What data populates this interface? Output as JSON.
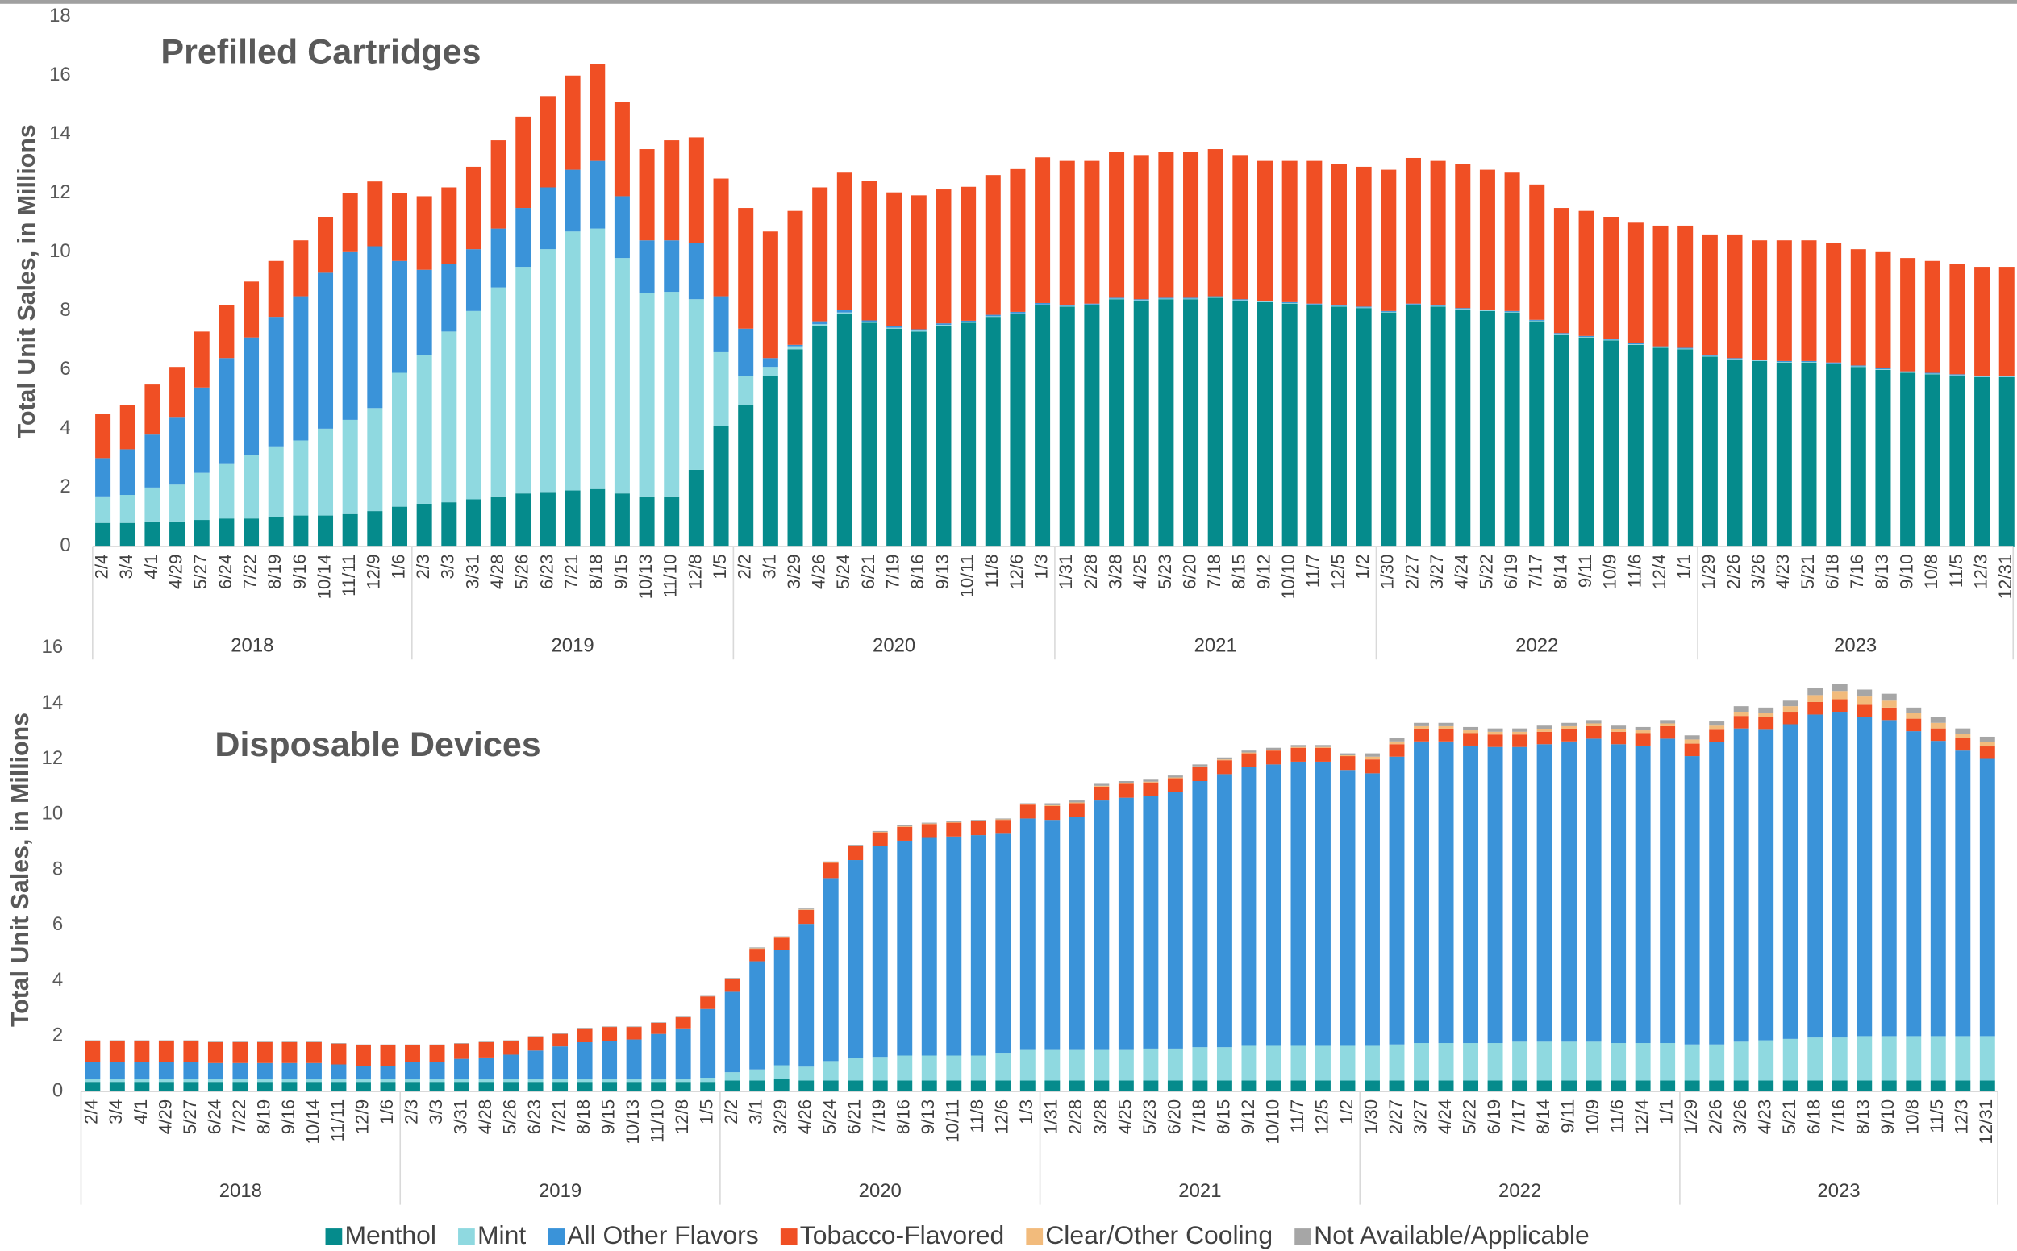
{
  "chart_data": [
    {
      "type": "bar",
      "stacked": true,
      "title": "Prefilled Cartridges",
      "ylabel": "Total Unit Sales, in Millions",
      "categories": [
        "2/4",
        "3/4",
        "4/1",
        "4/29",
        "5/27",
        "6/24",
        "7/22",
        "8/19",
        "9/16",
        "10/14",
        "11/11",
        "12/9",
        "1/6",
        "2/3",
        "3/3",
        "3/31",
        "4/28",
        "5/26",
        "6/23",
        "7/21",
        "8/18",
        "9/15",
        "10/13",
        "11/10",
        "12/8",
        "1/5",
        "2/2",
        "3/1",
        "3/29",
        "4/26",
        "5/24",
        "6/21",
        "7/19",
        "8/16",
        "9/13",
        "10/11",
        "11/8",
        "12/6",
        "1/3",
        "1/31",
        "2/28",
        "3/28",
        "4/25",
        "5/23",
        "6/20",
        "7/18",
        "8/15",
        "9/12",
        "10/10",
        "11/7",
        "12/5",
        "1/2",
        "1/30",
        "2/27",
        "3/27",
        "4/24",
        "5/22",
        "6/19",
        "7/17",
        "8/14",
        "9/11",
        "10/9",
        "11/6",
        "12/4",
        "1/1",
        "1/29",
        "2/26",
        "3/26",
        "4/23",
        "5/21",
        "6/18",
        "7/16",
        "8/13",
        "9/10",
        "10/8",
        "11/5",
        "12/3",
        "12/31"
      ],
      "year_groups": [
        "2018",
        "2019",
        "2020",
        "2021",
        "2022",
        "2023"
      ],
      "ylim": [
        0,
        18
      ],
      "yticks": [
        0,
        2,
        4,
        6,
        8,
        10,
        12,
        14,
        16,
        18
      ],
      "series": [
        {
          "color": "#058b8c",
          "values": [
            0.8,
            0.8,
            0.85,
            0.85,
            0.9,
            0.95,
            0.95,
            1.0,
            1.05,
            1.05,
            1.1,
            1.2,
            1.35,
            1.45,
            1.5,
            1.6,
            1.7,
            1.8,
            1.85,
            1.9,
            1.95,
            1.8,
            1.7,
            1.7,
            2.6,
            4.1,
            4.8,
            5.8,
            6.7,
            7.5,
            7.9,
            7.6,
            7.4,
            7.3,
            7.5,
            7.6,
            7.8,
            7.9,
            8.2,
            8.15,
            8.2,
            8.4,
            8.35,
            8.4,
            8.4,
            8.45,
            8.35,
            8.3,
            8.25,
            8.2,
            8.15,
            8.1,
            7.95,
            8.2,
            8.15,
            8.05,
            8.0,
            7.95,
            7.65,
            7.2,
            7.1,
            7.0,
            6.85,
            6.75,
            6.7,
            6.45,
            6.35,
            6.3,
            6.25,
            6.25,
            6.2,
            6.1,
            6.0,
            5.9,
            5.85,
            5.8,
            5.75,
            5.75
          ]
        },
        {
          "color": "#8fd9e0",
          "values": [
            0.9,
            0.95,
            1.15,
            1.25,
            1.6,
            1.85,
            2.15,
            2.4,
            2.55,
            2.95,
            3.2,
            3.5,
            4.55,
            5.05,
            5.8,
            6.4,
            7.1,
            7.7,
            8.25,
            8.8,
            8.85,
            8.0,
            6.9,
            6.95,
            5.8,
            2.5,
            1.0,
            0.3,
            0.1,
            0.05,
            0.05,
            0.03,
            0.03,
            0.03,
            0.03,
            0.02,
            0.02,
            0.02,
            0.02,
            0.02,
            0.02,
            0.02,
            0.02,
            0.02,
            0.02,
            0.02,
            0.02,
            0.02,
            0.02,
            0.02,
            0.02,
            0.02,
            0.02,
            0.02,
            0.02,
            0.02,
            0.02,
            0.02,
            0.02,
            0.02,
            0.02,
            0.02,
            0.02,
            0.02,
            0.02,
            0.02,
            0.02,
            0.02,
            0.02,
            0.02,
            0.02,
            0.02,
            0.02,
            0.02,
            0.02,
            0.02,
            0.02,
            0.02
          ]
        },
        {
          "color": "#3a93d9",
          "values": [
            1.3,
            1.55,
            1.8,
            2.3,
            2.9,
            3.6,
            4.0,
            4.4,
            4.9,
            5.3,
            5.7,
            5.5,
            3.8,
            2.9,
            2.3,
            2.1,
            2.0,
            2.0,
            2.1,
            2.1,
            2.3,
            2.1,
            1.8,
            1.75,
            1.9,
            1.9,
            1.6,
            0.3,
            0.05,
            0.1,
            0.1,
            0.05,
            0.05,
            0.05,
            0.05,
            0.05,
            0.05,
            0.05,
            0.05,
            0.03,
            0.03,
            0.03,
            0.03,
            0.03,
            0.03,
            0.03,
            0.03,
            0.03,
            0.03,
            0.03,
            0.03,
            0.03,
            0.03,
            0.03,
            0.03,
            0.03,
            0.03,
            0.03,
            0.03,
            0.03,
            0.03,
            0.03,
            0.03,
            0.03,
            0.03,
            0.03,
            0.03,
            0.03,
            0.03,
            0.03,
            0.03,
            0.03,
            0.03,
            0.03,
            0.03,
            0.03,
            0.03,
            0.03
          ]
        },
        {
          "color": "#f04f24",
          "values": [
            1.5,
            1.5,
            1.7,
            1.7,
            1.9,
            1.8,
            1.9,
            1.9,
            1.9,
            1.9,
            2.0,
            2.2,
            2.3,
            2.5,
            2.6,
            2.8,
            3.0,
            3.1,
            3.1,
            3.2,
            3.3,
            3.2,
            3.1,
            3.4,
            3.6,
            4.0,
            4.1,
            4.3,
            4.55,
            4.55,
            4.65,
            4.75,
            4.55,
            4.55,
            4.55,
            4.55,
            4.75,
            4.85,
            4.95,
            4.9,
            4.85,
            4.95,
            4.9,
            4.95,
            4.95,
            5.0,
            4.9,
            4.75,
            4.8,
            4.85,
            4.8,
            4.75,
            4.8,
            4.95,
            4.9,
            4.9,
            4.75,
            4.7,
            4.6,
            4.25,
            4.25,
            4.15,
            4.1,
            4.1,
            4.15,
            4.1,
            4.2,
            4.05,
            4.1,
            4.1,
            4.05,
            3.95,
            3.95,
            3.85,
            3.8,
            3.75,
            3.7,
            3.7
          ]
        }
      ]
    },
    {
      "type": "bar",
      "stacked": true,
      "title": "Disposable Devices",
      "ylabel": "Total Unit Sales, in Millions",
      "categories": [
        "2/4",
        "3/4",
        "4/1",
        "4/29",
        "5/27",
        "6/24",
        "7/22",
        "8/19",
        "9/16",
        "10/14",
        "11/11",
        "12/9",
        "1/6",
        "2/3",
        "3/3",
        "3/31",
        "4/28",
        "5/26",
        "6/23",
        "7/21",
        "8/18",
        "9/15",
        "10/13",
        "11/10",
        "12/8",
        "1/5",
        "2/2",
        "3/1",
        "3/29",
        "4/26",
        "5/24",
        "6/21",
        "7/19",
        "8/16",
        "9/13",
        "10/11",
        "11/8",
        "12/6",
        "1/3",
        "1/31",
        "2/28",
        "3/28",
        "4/25",
        "5/23",
        "6/20",
        "7/18",
        "8/15",
        "9/12",
        "10/10",
        "11/7",
        "12/5",
        "1/2",
        "1/30",
        "2/27",
        "3/27",
        "4/24",
        "5/22",
        "6/19",
        "7/17",
        "8/14",
        "9/11",
        "10/9",
        "11/6",
        "12/4",
        "1/1",
        "1/29",
        "2/26",
        "3/26",
        "4/23",
        "5/21",
        "6/18",
        "7/16",
        "8/13",
        "9/10",
        "10/8",
        "11/5",
        "12/3",
        "12/31"
      ],
      "year_groups": [
        "2018",
        "2019",
        "2020",
        "2021",
        "2022",
        "2023"
      ],
      "ylim": [
        0,
        16
      ],
      "yticks": [
        0,
        2,
        4,
        6,
        8,
        10,
        12,
        14,
        16
      ],
      "legend": "bottom",
      "series": [
        {
          "name": "Menthol",
          "color": "#058b8c",
          "values": [
            0.35,
            0.35,
            0.35,
            0.35,
            0.35,
            0.35,
            0.35,
            0.35,
            0.35,
            0.35,
            0.35,
            0.35,
            0.35,
            0.35,
            0.35,
            0.35,
            0.35,
            0.35,
            0.35,
            0.35,
            0.35,
            0.35,
            0.35,
            0.35,
            0.35,
            0.35,
            0.4,
            0.4,
            0.45,
            0.4,
            0.4,
            0.4,
            0.4,
            0.4,
            0.4,
            0.4,
            0.4,
            0.4,
            0.4,
            0.4,
            0.4,
            0.4,
            0.4,
            0.4,
            0.4,
            0.4,
            0.4,
            0.4,
            0.4,
            0.4,
            0.4,
            0.4,
            0.4,
            0.4,
            0.4,
            0.4,
            0.4,
            0.4,
            0.4,
            0.4,
            0.4,
            0.4,
            0.4,
            0.4,
            0.4,
            0.4,
            0.4,
            0.4,
            0.4,
            0.4,
            0.4,
            0.4,
            0.4,
            0.4,
            0.4,
            0.4,
            0.4,
            0.4
          ]
        },
        {
          "name": "Mint",
          "color": "#8fd9e0",
          "values": [
            0.1,
            0.1,
            0.1,
            0.1,
            0.1,
            0.1,
            0.1,
            0.1,
            0.1,
            0.1,
            0.1,
            0.1,
            0.1,
            0.1,
            0.1,
            0.1,
            0.1,
            0.1,
            0.1,
            0.1,
            0.1,
            0.1,
            0.1,
            0.1,
            0.1,
            0.15,
            0.3,
            0.4,
            0.5,
            0.5,
            0.7,
            0.8,
            0.85,
            0.9,
            0.9,
            0.9,
            0.9,
            1.0,
            1.1,
            1.1,
            1.1,
            1.1,
            1.1,
            1.15,
            1.15,
            1.2,
            1.2,
            1.25,
            1.25,
            1.25,
            1.25,
            1.25,
            1.25,
            1.3,
            1.35,
            1.35,
            1.35,
            1.35,
            1.4,
            1.4,
            1.4,
            1.4,
            1.35,
            1.35,
            1.35,
            1.3,
            1.3,
            1.4,
            1.45,
            1.5,
            1.55,
            1.55,
            1.6,
            1.6,
            1.6,
            1.6,
            1.6,
            1.6
          ]
        },
        {
          "name": "All Other Flavors",
          "color": "#3a93d9",
          "values": [
            0.63,
            0.63,
            0.63,
            0.63,
            0.63,
            0.58,
            0.58,
            0.58,
            0.58,
            0.58,
            0.53,
            0.48,
            0.48,
            0.63,
            0.63,
            0.73,
            0.78,
            0.88,
            1.03,
            1.18,
            1.33,
            1.38,
            1.43,
            1.63,
            1.83,
            2.48,
            2.9,
            3.9,
            4.15,
            5.15,
            6.6,
            7.15,
            7.6,
            7.75,
            7.85,
            7.9,
            7.95,
            7.9,
            8.35,
            8.3,
            8.4,
            9.0,
            9.1,
            9.1,
            9.25,
            9.6,
            9.85,
            10.05,
            10.15,
            10.25,
            10.25,
            9.95,
            9.83,
            10.38,
            10.88,
            10.88,
            10.73,
            10.68,
            10.63,
            10.73,
            10.83,
            10.93,
            10.78,
            10.73,
            10.98,
            10.4,
            10.9,
            11.3,
            11.2,
            11.35,
            11.65,
            11.75,
            11.5,
            11.4,
            11.0,
            10.65,
            10.3,
            10.0
          ]
        },
        {
          "name": "Tobacco-Flavored",
          "color": "#f04f24",
          "values": [
            0.75,
            0.75,
            0.75,
            0.75,
            0.75,
            0.75,
            0.75,
            0.75,
            0.75,
            0.75,
            0.75,
            0.75,
            0.75,
            0.6,
            0.6,
            0.55,
            0.55,
            0.5,
            0.5,
            0.45,
            0.5,
            0.5,
            0.45,
            0.4,
            0.4,
            0.45,
            0.45,
            0.45,
            0.45,
            0.5,
            0.55,
            0.5,
            0.5,
            0.5,
            0.5,
            0.5,
            0.5,
            0.5,
            0.5,
            0.5,
            0.5,
            0.5,
            0.5,
            0.5,
            0.5,
            0.5,
            0.5,
            0.5,
            0.5,
            0.5,
            0.5,
            0.5,
            0.5,
            0.45,
            0.45,
            0.45,
            0.45,
            0.45,
            0.45,
            0.45,
            0.45,
            0.45,
            0.45,
            0.45,
            0.45,
            0.45,
            0.45,
            0.45,
            0.45,
            0.45,
            0.45,
            0.45,
            0.45,
            0.45,
            0.45,
            0.45,
            0.45,
            0.45
          ]
        },
        {
          "name": "Clear/Other Cooling",
          "color": "#f2bb7c",
          "values": [
            0,
            0,
            0,
            0,
            0,
            0,
            0,
            0,
            0,
            0,
            0,
            0,
            0,
            0,
            0,
            0,
            0,
            0,
            0,
            0,
            0,
            0,
            0,
            0,
            0,
            0,
            0.02,
            0.02,
            0.02,
            0.02,
            0.02,
            0.02,
            0.02,
            0.02,
            0.02,
            0.02,
            0.02,
            0.02,
            0.02,
            0.03,
            0.03,
            0.03,
            0.03,
            0.03,
            0.03,
            0.03,
            0.03,
            0.03,
            0.03,
            0.03,
            0.03,
            0.03,
            0.1,
            0.1,
            0.1,
            0.1,
            0.1,
            0.1,
            0.1,
            0.1,
            0.1,
            0.1,
            0.1,
            0.1,
            0.1,
            0.15,
            0.15,
            0.15,
            0.15,
            0.2,
            0.25,
            0.3,
            0.3,
            0.25,
            0.2,
            0.2,
            0.15,
            0.15
          ]
        },
        {
          "name": "Not Available/Applicable",
          "color": "#a6a6a6",
          "values": [
            0.02,
            0.02,
            0.02,
            0.02,
            0.02,
            0.02,
            0.02,
            0.02,
            0.02,
            0.02,
            0.02,
            0.02,
            0.02,
            0.02,
            0.02,
            0.02,
            0.02,
            0.02,
            0.02,
            0.02,
            0.02,
            0.02,
            0.02,
            0.02,
            0.02,
            0.02,
            0.03,
            0.03,
            0.03,
            0.03,
            0.03,
            0.03,
            0.03,
            0.03,
            0.03,
            0.03,
            0.03,
            0.03,
            0.03,
            0.07,
            0.07,
            0.07,
            0.07,
            0.07,
            0.07,
            0.07,
            0.07,
            0.07,
            0.07,
            0.07,
            0.07,
            0.07,
            0.12,
            0.12,
            0.12,
            0.12,
            0.12,
            0.12,
            0.12,
            0.12,
            0.12,
            0.12,
            0.12,
            0.12,
            0.12,
            0.15,
            0.15,
            0.2,
            0.2,
            0.2,
            0.25,
            0.25,
            0.25,
            0.25,
            0.2,
            0.2,
            0.2,
            0.2
          ]
        }
      ]
    }
  ]
}
